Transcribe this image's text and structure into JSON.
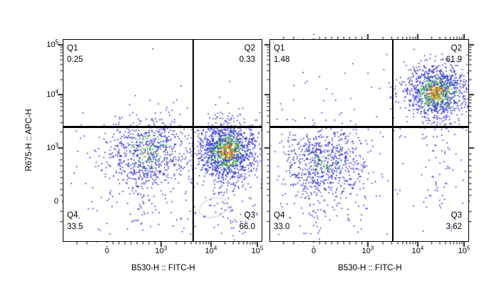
{
  "palette": {
    "bg": "#ffffff",
    "frame": "#000000",
    "gate": "#000000",
    "text": "#000000",
    "dot_blue": "#2828d8",
    "dot_green": "#2db82d",
    "dot_yellow": "#cfcf26",
    "dot_orange": "#e0831f",
    "dot_red": "#cc2a1f",
    "ellipse": "#c9c9c9"
  },
  "y_axis": {
    "label": "R675-H :: APC-H",
    "ticks": [
      {
        "base": "10",
        "exp": "5"
      },
      {
        "base": "10",
        "exp": "4"
      },
      {
        "base": "10",
        "exp": "3"
      },
      {
        "base": "0",
        "exp": ""
      }
    ]
  },
  "chart_data": [
    {
      "type": "scatter",
      "title": "",
      "xlabel": "B530-H :: FITC-H",
      "ylabel": "R675-H :: APC-H",
      "x_scale": "biexponential: 0, 10^3, 10^4, 10^5",
      "y_scale": "biexponential: 0, 10^3, 10^4, 10^5",
      "x_ticks": [
        {
          "base": "0",
          "exp": ""
        },
        {
          "base": "10",
          "exp": "3"
        },
        {
          "base": "10",
          "exp": "4"
        },
        {
          "base": "10",
          "exp": "5"
        }
      ],
      "quadrants": {
        "q1": {
          "label": "Q1",
          "value": "0.25"
        },
        "q2": {
          "label": "Q2",
          "value": "0.33"
        },
        "q3": {
          "label": "Q3",
          "value": "66.0"
        },
        "q4": {
          "label": "Q4",
          "value": "33.5"
        }
      },
      "gate": {
        "x_frac": 0.654,
        "y_frac": 0.432
      },
      "clusters": [
        {
          "fx": 0.43,
          "fy": 0.56,
          "sx": 0.105,
          "sy": 0.09,
          "n": 750,
          "scheme": "mild",
          "approx_center": "x~6e2, y~8e2"
        },
        {
          "fx": 0.825,
          "fy": 0.55,
          "sx": 0.07,
          "sy": 0.075,
          "n": 1350,
          "scheme": "hot",
          "approx_center": "x~2e4, y~9e2"
        },
        {
          "fx": 0.825,
          "fy": 0.78,
          "sx": 0.055,
          "sy": 0.11,
          "n": 70,
          "scheme": "blue",
          "approx_center": "x~2e4, y~0"
        },
        {
          "fx": 0.44,
          "fy": 0.78,
          "sx": 0.09,
          "sy": 0.1,
          "n": 45,
          "scheme": "blue",
          "approx_center": "x~6e2, y~0"
        }
      ],
      "sparse": [
        {
          "n": 120,
          "x0": 0.04,
          "x1": 0.97,
          "y0": 0.42,
          "y1": 0.96
        },
        {
          "n": 9,
          "x0": 0.25,
          "x1": 0.96,
          "y0": 0.04,
          "y1": 0.4
        }
      ],
      "ellipse": {
        "fx": 0.757,
        "fy": 0.831,
        "rx": 21,
        "ry": 13
      }
    },
    {
      "type": "scatter",
      "title": "",
      "xlabel": "B530-H :: FITC-H",
      "ylabel": "R675-H :: APC-H",
      "x_scale": "biexponential: 0, 10^3, 10^4, 10^5",
      "y_scale": "biexponential: 0, 10^3, 10^4, 10^5",
      "x_ticks": [
        {
          "base": "0",
          "exp": ""
        },
        {
          "base": "10",
          "exp": "3"
        },
        {
          "base": "10",
          "exp": "4"
        },
        {
          "base": "10",
          "exp": "5"
        }
      ],
      "quadrants": {
        "q1": {
          "label": "Q1",
          "value": "1.48"
        },
        "q2": {
          "label": "Q2",
          "value": "61.9"
        },
        "q3": {
          "label": "Q3",
          "value": "3.62"
        },
        "q4": {
          "label": "Q4",
          "value": "33.0"
        }
      },
      "gate": {
        "x_frac": 0.618,
        "y_frac": 0.432
      },
      "clusters": [
        {
          "fx": 0.27,
          "fy": 0.61,
          "sx": 0.105,
          "sy": 0.095,
          "n": 700,
          "scheme": "mild2",
          "approx_center": "x~2e2, y~7e2"
        },
        {
          "fx": 0.83,
          "fy": 0.26,
          "sx": 0.078,
          "sy": 0.068,
          "n": 1150,
          "scheme": "hot",
          "approx_center": "x~2e4, y~1.2e4"
        },
        {
          "fx": 0.85,
          "fy": 0.52,
          "sx": 0.05,
          "sy": 0.16,
          "n": 80,
          "scheme": "blue",
          "approx_center": "x~3e4, y~1e3"
        },
        {
          "fx": 0.28,
          "fy": 0.83,
          "sx": 0.09,
          "sy": 0.08,
          "n": 35,
          "scheme": "blue",
          "approx_center": "x~2e2, y~0"
        }
      ],
      "sparse": [
        {
          "n": 100,
          "x0": 0.03,
          "x1": 0.68,
          "y0": 0.42,
          "y1": 0.96
        },
        {
          "n": 24,
          "x0": 0.03,
          "x1": 0.6,
          "y0": 0.05,
          "y1": 0.4
        },
        {
          "n": 8,
          "x0": 0.68,
          "x1": 0.97,
          "y0": 0.75,
          "y1": 0.95
        }
      ],
      "ellipse": null
    }
  ]
}
